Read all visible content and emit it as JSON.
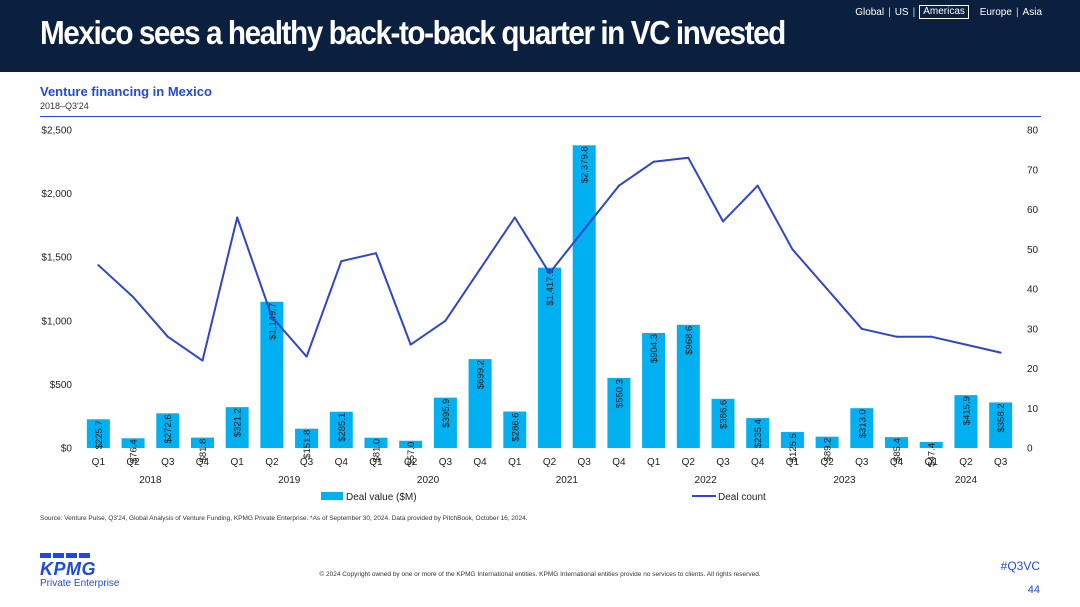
{
  "header": {
    "title": "Mexico sees a healthy back-to-back quarter in VC invested",
    "regions": [
      "Global",
      "US",
      "Americas",
      "Europe",
      "Asia"
    ],
    "active_region": "Americas"
  },
  "chart_data": {
    "type": "bar",
    "title": "Venture financing in Mexico",
    "subtitle": "2018–Q3'24",
    "categories": [
      "Q1",
      "Q2",
      "Q3",
      "Q4",
      "Q1",
      "Q2",
      "Q3",
      "Q4",
      "Q1",
      "Q2",
      "Q3",
      "Q4",
      "Q1",
      "Q2",
      "Q3",
      "Q4",
      "Q1",
      "Q2",
      "Q3",
      "Q4",
      "Q1",
      "Q2",
      "Q3",
      "Q4",
      "Q1",
      "Q2",
      "Q3"
    ],
    "years": [
      {
        "label": "2018",
        "quarters": 4
      },
      {
        "label": "2019",
        "quarters": 4
      },
      {
        "label": "2020",
        "quarters": 4
      },
      {
        "label": "2021",
        "quarters": 4
      },
      {
        "label": "2022",
        "quarters": 4
      },
      {
        "label": "2023",
        "quarters": 4
      },
      {
        "label": "2024",
        "quarters": 3
      }
    ],
    "series": [
      {
        "name": "Deal value ($M)",
        "type": "bar",
        "axis": "left",
        "color": "#00b0f0",
        "values": [
          225.7,
          76.4,
          272.6,
          81.8,
          321.2,
          1149.7,
          151.8,
          285.1,
          81.0,
          57.0,
          395.9,
          699.2,
          286.6,
          1417.9,
          2379.8,
          550.3,
          904.3,
          968.6,
          386.6,
          235.4,
          125.5,
          89.2,
          313.0,
          85.4,
          47.4,
          415.9,
          358.2
        ],
        "labels": [
          "$225.7",
          "$76.4",
          "$272.6",
          "$81.8",
          "$321.2",
          "$1,149.7",
          "$151.8",
          "$285.1",
          "$81.0",
          "$57.0",
          "$395.9",
          "$699.2",
          "$286.6",
          "$1,417.9",
          "$2,379.8",
          "$550.3",
          "$904.3",
          "$968.6",
          "$386.6",
          "$235.4",
          "$125.5",
          "$89.2",
          "$313.0",
          "$85.4",
          "$47.4",
          "$415.9",
          "$358.2"
        ]
      },
      {
        "name": "Deal count",
        "type": "line",
        "axis": "right",
        "color": "#2f46c8",
        "values": [
          46,
          38,
          28,
          22,
          58,
          33,
          23,
          47,
          49,
          26,
          32,
          45,
          58,
          44,
          55,
          66,
          72,
          73,
          57,
          66,
          50,
          40,
          30,
          28,
          28,
          26,
          24
        ]
      }
    ],
    "y_left": {
      "min": 0,
      "max": 2500,
      "ticks": [
        0,
        500,
        1000,
        1500,
        2000,
        2500
      ],
      "tick_labels": [
        "$0",
        "$500",
        "$1,000",
        "$1,500",
        "$2,000",
        "$2,500"
      ]
    },
    "y_right": {
      "min": 0,
      "max": 80,
      "ticks": [
        0,
        10,
        20,
        30,
        40,
        50,
        60,
        70,
        80
      ],
      "tick_labels": [
        "0",
        "10",
        "20",
        "30",
        "40",
        "50",
        "60",
        "70",
        "80"
      ]
    },
    "legend": [
      "Deal value ($M)",
      "Deal count"
    ],
    "legend_position": "bottom",
    "grid": false
  },
  "footer": {
    "source": "Source: Venture Pulse, Q3'24, Global Analysis of Venture Funding, KPMG Private Enterprise. *As of September 30, 2024. Data provided by PitchBook, October 16, 2024.",
    "copyright": "© 2024 Copyright owned by one or more of the KPMG International entities. KPMG International entities provide no services to clients. All rights reserved.",
    "hashtag": "#Q3VC",
    "page_number": "44",
    "logo_text": "KPMG",
    "logo_subtitle": "Private Enterprise"
  }
}
